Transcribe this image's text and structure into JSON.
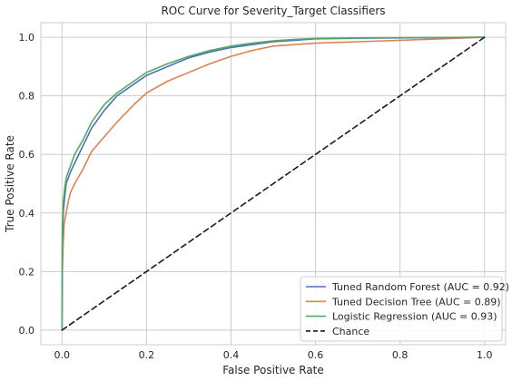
{
  "chart_data": {
    "type": "line",
    "title": "ROC Curve for Severity_Target Classifiers",
    "xlabel": "False Positive Rate",
    "ylabel": "True Positive Rate",
    "xlim": [
      -0.05,
      1.05
    ],
    "ylim": [
      -0.05,
      1.05
    ],
    "xticks": [
      "0.0",
      "0.2",
      "0.4",
      "0.6",
      "0.8",
      "1.0"
    ],
    "yticks": [
      "0.0",
      "0.2",
      "0.4",
      "0.6",
      "0.8",
      "1.0"
    ],
    "grid": true,
    "legend_position": "lower-right",
    "series": [
      {
        "name": "Tuned Random Forest (AUC = 0.92)",
        "color": "#4c72b0",
        "style": "solid",
        "x": [
          0.0,
          0.001,
          0.003,
          0.006,
          0.01,
          0.02,
          0.03,
          0.05,
          0.07,
          0.1,
          0.13,
          0.17,
          0.2,
          0.25,
          0.3,
          0.35,
          0.4,
          0.45,
          0.5,
          0.55,
          0.6,
          0.7,
          0.8,
          0.9,
          1.0
        ],
        "y": [
          0.0,
          0.3,
          0.4,
          0.45,
          0.5,
          0.54,
          0.57,
          0.63,
          0.69,
          0.75,
          0.8,
          0.84,
          0.87,
          0.9,
          0.93,
          0.95,
          0.965,
          0.975,
          0.985,
          0.99,
          0.995,
          0.997,
          0.998,
          0.999,
          1.0
        ]
      },
      {
        "name": "Tuned Decision Tree (AUC = 0.89)",
        "color": "#dd8452",
        "style": "solid",
        "x": [
          0.0,
          0.001,
          0.003,
          0.005,
          0.01,
          0.015,
          0.02,
          0.03,
          0.05,
          0.07,
          0.1,
          0.13,
          0.17,
          0.2,
          0.25,
          0.3,
          0.35,
          0.4,
          0.45,
          0.5,
          0.6,
          0.7,
          0.8,
          0.9,
          1.0
        ],
        "y": [
          0.0,
          0.2,
          0.3,
          0.36,
          0.4,
          0.44,
          0.47,
          0.5,
          0.55,
          0.61,
          0.66,
          0.71,
          0.77,
          0.81,
          0.85,
          0.88,
          0.91,
          0.935,
          0.955,
          0.97,
          0.98,
          0.985,
          0.99,
          0.995,
          1.0
        ]
      },
      {
        "name": "Logistic Regression (AUC = 0.93)",
        "color": "#55a868",
        "style": "solid",
        "x": [
          0.0,
          0.001,
          0.003,
          0.006,
          0.01,
          0.02,
          0.03,
          0.05,
          0.07,
          0.1,
          0.13,
          0.17,
          0.2,
          0.25,
          0.3,
          0.35,
          0.4,
          0.45,
          0.5,
          0.55,
          0.6,
          0.7,
          0.8,
          0.9,
          1.0
        ],
        "y": [
          0.0,
          0.35,
          0.44,
          0.48,
          0.52,
          0.56,
          0.6,
          0.65,
          0.71,
          0.77,
          0.81,
          0.85,
          0.88,
          0.91,
          0.935,
          0.955,
          0.97,
          0.98,
          0.988,
          0.993,
          0.996,
          0.998,
          0.999,
          0.9995,
          1.0
        ]
      },
      {
        "name": "Chance",
        "color": "#1a1a1a",
        "style": "dashed",
        "x": [
          0.0,
          1.0
        ],
        "y": [
          0.0,
          1.0
        ]
      }
    ]
  }
}
